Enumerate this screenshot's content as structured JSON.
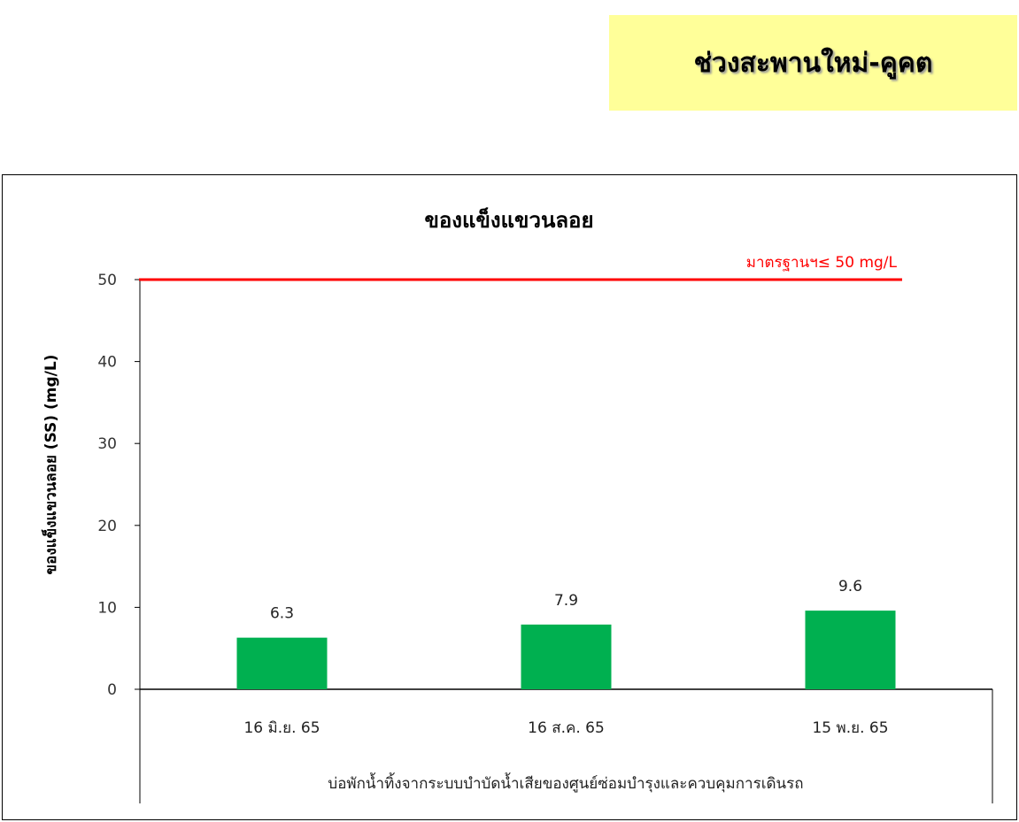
{
  "banner": {
    "title": "ช่วงสะพานใหม่-คูคต",
    "color": "#ffff99"
  },
  "chart_data": {
    "type": "bar",
    "title": "ของแข็งแขวนลอย",
    "ylabel": "ของแข็งแขวนลอย (SS) (mg/L)",
    "xlabel": "บ่อพักน้ำทิ้งจากระบบบำบัดน้ำเสียของศูนย์ซ่อมบำรุงและควบคุมการเดินรถ",
    "categories": [
      "16 มิ.ย. 65",
      "16 ส.ค. 65",
      "15 พ.ย. 65"
    ],
    "values": [
      6.3,
      7.9,
      9.6
    ],
    "data_labels": [
      "6.3",
      "7.9",
      "9.6"
    ],
    "ylim": [
      0,
      50
    ],
    "yticks": [
      "0",
      "10",
      "20",
      "30",
      "40",
      "50"
    ],
    "grid": false,
    "bar_color": "#00b050",
    "reference_line": {
      "value": 50,
      "label": "มาตรฐานฯ≤ 50 mg/L",
      "color": "#ff0000"
    }
  }
}
